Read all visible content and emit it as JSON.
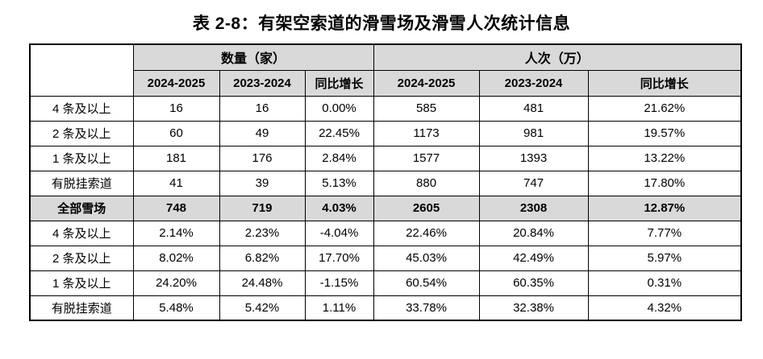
{
  "page": {
    "title": "表 2-8：有架空索道的滑雪场及滑雪人次统计信息"
  },
  "table": {
    "group_headers": [
      {
        "label": "数量（家）"
      },
      {
        "label": "人次（万）"
      }
    ],
    "sub_headers": [
      "2024-2025",
      "2023-2024",
      "同比增长",
      "2024-2025",
      "2023-2024",
      "同比增长"
    ],
    "rows": [
      {
        "label": "4 条及以上",
        "values": [
          "16",
          "16",
          "0.00%",
          "585",
          "481",
          "21.62%"
        ],
        "total": false
      },
      {
        "label": "2 条及以上",
        "values": [
          "60",
          "49",
          "22.45%",
          "1173",
          "981",
          "19.57%"
        ],
        "total": false
      },
      {
        "label": "1 条及以上",
        "values": [
          "181",
          "176",
          "2.84%",
          "1577",
          "1393",
          "13.22%"
        ],
        "total": false
      },
      {
        "label": "有脱挂索道",
        "values": [
          "41",
          "39",
          "5.13%",
          "880",
          "747",
          "17.80%"
        ],
        "total": false
      },
      {
        "label": "全部雪场",
        "values": [
          "748",
          "719",
          "4.03%",
          "2605",
          "2308",
          "12.87%"
        ],
        "total": true
      },
      {
        "label": "4 条及以上",
        "values": [
          "2.14%",
          "2.23%",
          "-4.04%",
          "22.46%",
          "20.84%",
          "7.77%"
        ],
        "total": false
      },
      {
        "label": "2 条及以上",
        "values": [
          "8.02%",
          "6.82%",
          "17.70%",
          "45.03%",
          "42.49%",
          "5.97%"
        ],
        "total": false
      },
      {
        "label": "1 条及以上",
        "values": [
          "24.20%",
          "24.48%",
          "-1.15%",
          "60.54%",
          "60.35%",
          "0.31%"
        ],
        "total": false
      },
      {
        "label": "有脱挂索道",
        "values": [
          "5.48%",
          "5.42%",
          "1.11%",
          "33.78%",
          "32.38%",
          "4.32%"
        ],
        "total": false
      }
    ]
  },
  "colors": {
    "header_bg": "#d9d9d9",
    "border": "#000000",
    "text": "#000000",
    "page_bg": "#ffffff"
  }
}
